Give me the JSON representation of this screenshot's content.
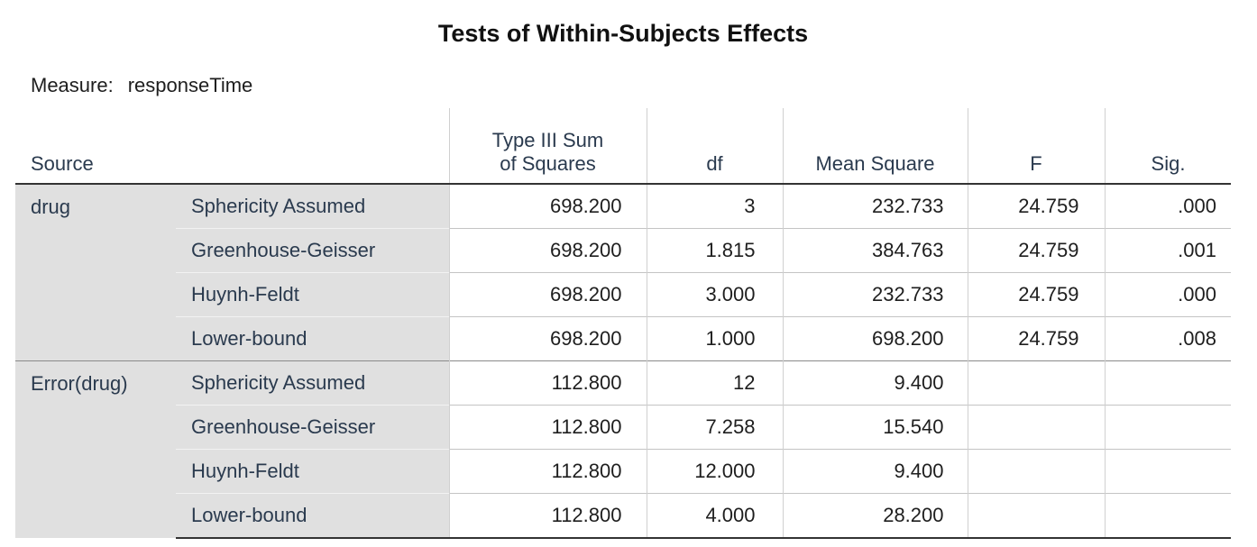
{
  "title": "Tests of Within-Subjects Effects",
  "measure": {
    "label": "Measure:",
    "value": "responseTime"
  },
  "table": {
    "header": [
      "Source",
      "Type III Sum of Squares",
      "df",
      "Mean Square",
      "F",
      "Sig."
    ],
    "groups": [
      {
        "source": "drug",
        "rows": [
          {
            "label": "Sphericity Assumed",
            "values": [
              "698.200",
              "3",
              "232.733",
              "24.759",
              ".000"
            ]
          },
          {
            "label": "Greenhouse-Geisser",
            "values": [
              "698.200",
              "1.815",
              "384.763",
              "24.759",
              ".001"
            ]
          },
          {
            "label": "Huynh-Feldt",
            "values": [
              "698.200",
              "3.000",
              "232.733",
              "24.759",
              ".000"
            ]
          },
          {
            "label": "Lower-bound",
            "values": [
              "698.200",
              "1.000",
              "698.200",
              "24.759",
              ".008"
            ]
          }
        ]
      },
      {
        "source": "Error(drug)",
        "rows": [
          {
            "label": "Sphericity Assumed",
            "values": [
              "112.800",
              "12",
              "9.400"
            ]
          },
          {
            "label": "Greenhouse-Geisser",
            "values": [
              "112.800",
              "7.258",
              "15.540"
            ]
          },
          {
            "label": "Huynh-Feldt",
            "values": [
              "112.800",
              "12.000",
              "9.400"
            ]
          },
          {
            "label": "Lower-bound",
            "values": [
              "112.800",
              "4.000",
              "28.200"
            ]
          }
        ]
      }
    ]
  }
}
